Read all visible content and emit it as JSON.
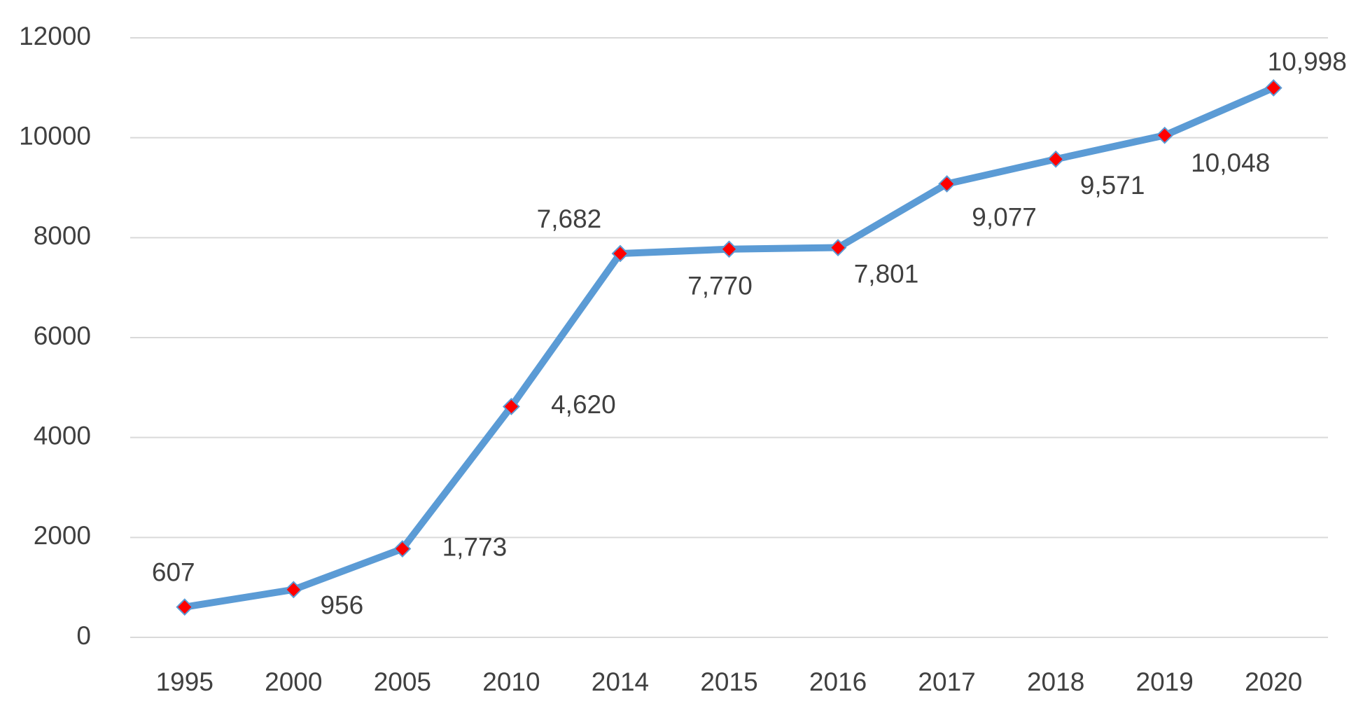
{
  "chart_data": {
    "type": "line",
    "categories": [
      "1995",
      "2000",
      "2005",
      "2010",
      "2014",
      "2015",
      "2016",
      "2017",
      "2018",
      "2019",
      "2020"
    ],
    "values": [
      607,
      956,
      1773,
      4620,
      7682,
      7770,
      7801,
      9077,
      9571,
      10048,
      10998
    ],
    "value_labels": [
      "607",
      "956",
      "1,773",
      "4,620",
      "7,682",
      "7,770",
      "7,801",
      "9,077",
      "9,571",
      "10,048",
      "10,998"
    ],
    "color": "#5b9bd5",
    "marker_color": "#ff0000",
    "ylim": [
      0,
      12000
    ],
    "yticks": [
      0,
      2000,
      4000,
      6000,
      8000,
      10000,
      12000
    ],
    "grid": true
  }
}
